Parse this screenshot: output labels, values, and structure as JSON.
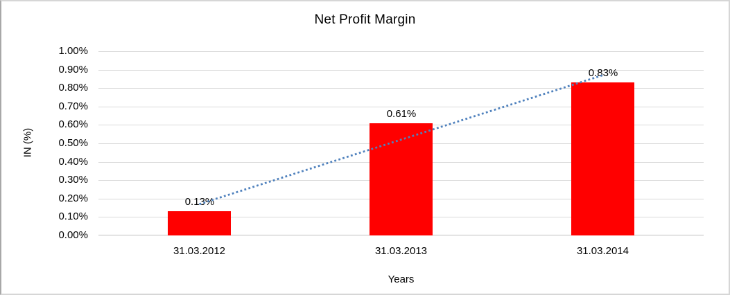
{
  "chart_data": {
    "type": "bar",
    "title": "Net Profit Margin",
    "xlabel": "Years",
    "ylabel": "IN (%)",
    "categories": [
      "31.03.2012",
      "31.03.2013",
      "31.03.2014"
    ],
    "values": [
      0.13,
      0.61,
      0.83
    ],
    "data_labels": [
      "0.13%",
      "0.61%",
      "0.83%"
    ],
    "ylim": [
      0,
      1.0
    ],
    "ytick_step": 0.1,
    "yticks": [
      "0.00%",
      "0.10%",
      "0.20%",
      "0.30%",
      "0.40%",
      "0.50%",
      "0.60%",
      "0.70%",
      "0.80%",
      "0.90%",
      "1.00%"
    ],
    "grid": true,
    "legend": "none",
    "bar_color": "#ff0000",
    "gridline_color": "#d9d9d9",
    "axis_line_color": "#bfbfbf",
    "text_color": "#000000",
    "trendline": {
      "shape": "linear",
      "line_style": "dotted",
      "color": "#4f81bd",
      "start_value": 0.17,
      "end_value": 0.87,
      "start_category_index": 0,
      "end_category_index": 2
    }
  }
}
